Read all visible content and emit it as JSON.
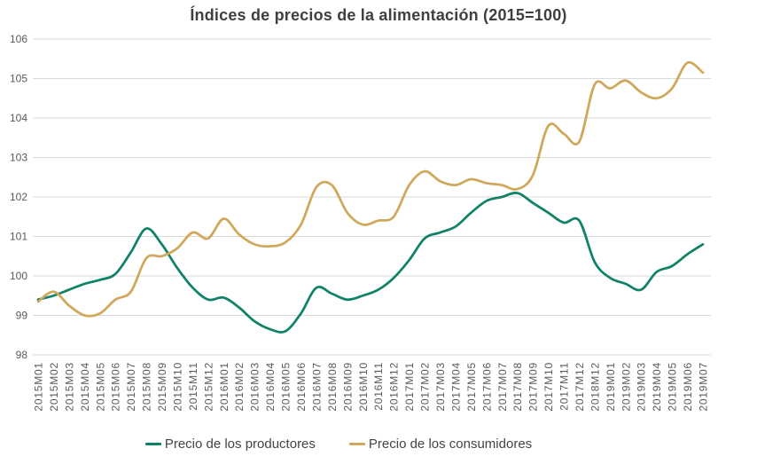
{
  "chart_data": {
    "type": "line",
    "title": "Índices de precios de la alimentación (2015=100)",
    "xlabel": "",
    "ylabel": "",
    "ylim": [
      98,
      106
    ],
    "y_ticks": [
      98,
      99,
      100,
      101,
      102,
      103,
      104,
      105,
      106
    ],
    "grid": "horizontal",
    "legend_position": "bottom",
    "axis_color": "#595959",
    "grid_color": "#d9d9d9",
    "title_color": "#3f3f3f",
    "categories": [
      "2015M01",
      "2015M02",
      "2015M03",
      "2015M04",
      "2015M05",
      "2015M06",
      "2015M07",
      "2015M08",
      "2015M09",
      "2015M10",
      "2015M11",
      "2015M12",
      "2016M01",
      "2016M02",
      "2016M03",
      "2016M04",
      "2016M05",
      "2016M06",
      "2016M07",
      "2016M08",
      "2016M09",
      "2016M10",
      "2016M11",
      "2016M12",
      "2017M01",
      "2017M02",
      "2017M03",
      "2017M04",
      "2017M05",
      "2017M06",
      "2017M07",
      "2017M08",
      "2017M09",
      "2017M10",
      "2017M11",
      "2017M12",
      "2018M12",
      "2019M01",
      "2019M02",
      "2019M03",
      "2019M04",
      "2019M05",
      "2019M06",
      "2019M07"
    ],
    "series": [
      {
        "name": "Precio de los productores",
        "color": "#0f8268",
        "values": [
          99.4,
          99.5,
          99.65,
          99.8,
          99.9,
          100.05,
          100.6,
          101.2,
          100.8,
          100.2,
          99.7,
          99.4,
          99.45,
          99.2,
          98.85,
          98.65,
          98.6,
          99.05,
          99.7,
          99.55,
          99.4,
          99.5,
          99.65,
          99.95,
          100.4,
          100.95,
          101.1,
          101.25,
          101.6,
          101.9,
          102.0,
          102.1,
          101.85,
          101.6,
          101.35,
          101.4,
          100.35,
          99.95,
          99.8,
          99.65,
          100.1,
          100.25,
          100.55,
          100.8
        ]
      },
      {
        "name": "Precio de los consumidores",
        "color": "#cfa85c",
        "values": [
          99.35,
          99.6,
          99.25,
          99.0,
          99.05,
          99.4,
          99.6,
          100.45,
          100.5,
          100.7,
          101.1,
          100.95,
          101.45,
          101.05,
          100.8,
          100.75,
          100.85,
          101.3,
          102.25,
          102.3,
          101.6,
          101.3,
          101.4,
          101.5,
          102.3,
          102.65,
          102.4,
          102.3,
          102.45,
          102.35,
          102.3,
          102.2,
          102.55,
          103.8,
          103.6,
          103.4,
          104.85,
          104.75,
          104.95,
          104.65,
          104.5,
          104.75,
          105.4,
          105.15
        ]
      }
    ]
  }
}
